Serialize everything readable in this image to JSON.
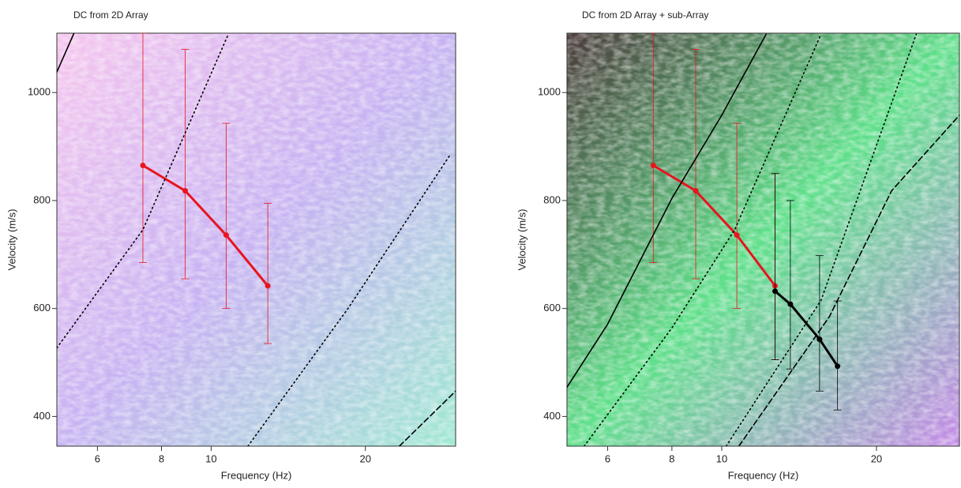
{
  "chart_data": [
    {
      "type": "line",
      "title": "DC from  2D Array",
      "x_label": "Frequency (Hz)",
      "y_label": "Velocity (m/s)",
      "log_x": true,
      "xlim": [
        5,
        30
      ],
      "ylim": [
        345,
        1110
      ],
      "xticks": [
        6,
        8,
        10,
        20
      ],
      "yticks": [
        400,
        600,
        800,
        1000
      ],
      "background": [
        "#f6c6ee",
        "#c7b3f2",
        "#9fe8d2"
      ],
      "series": [
        {
          "color": "#e8141e",
          "style": "solid",
          "markers": true,
          "x": [
            7.36,
            8.9,
            10.7,
            12.9
          ],
          "values": [
            865,
            818,
            736,
            642
          ],
          "lower": [
            685,
            655,
            600,
            535
          ],
          "upper": [
            1110,
            1080,
            943,
            795
          ]
        },
        {
          "color": "#000000",
          "style": "dotted",
          "x": [
            5,
            7.36,
            10.8
          ],
          "values": [
            527,
            746,
            1108
          ]
        },
        {
          "color": "#000000",
          "style": "dotted",
          "x": [
            11.8,
            18.5,
            29.3
          ],
          "values": [
            345,
            600,
            885
          ]
        },
        {
          "color": "#000000",
          "style": "dashed",
          "x": [
            23.3,
            30
          ],
          "values": [
            345,
            447
          ]
        },
        {
          "color": "#000000",
          "style": "solid",
          "x": [
            5,
            5.4
          ],
          "values": [
            1038,
            1110
          ]
        }
      ]
    },
    {
      "type": "line",
      "title": "DC from  2D Array + sub-Array",
      "x_label": "Frequency (Hz)",
      "y_label": "Velocity (m/s)",
      "log_x": true,
      "xlim": [
        5,
        29
      ],
      "ylim": [
        345,
        1110
      ],
      "xticks": [
        6,
        8,
        10,
        20
      ],
      "yticks": [
        400,
        600,
        800,
        1000
      ],
      "background": [
        "#4a3a3a",
        "#5fe08a",
        "#c58ae8"
      ],
      "series": [
        {
          "color": "#e8141e",
          "style": "solid",
          "markers": true,
          "x": [
            7.36,
            8.9,
            10.7,
            12.7
          ],
          "values": [
            865,
            818,
            736,
            642
          ],
          "lower": [
            685,
            655,
            600,
            505
          ],
          "upper": [
            1110,
            1080,
            943,
            850
          ]
        },
        {
          "color": "#000000",
          "style": "solid",
          "markers": true,
          "x": [
            12.7,
            13.6,
            15.5,
            16.8
          ],
          "values": [
            632,
            608,
            543,
            493
          ],
          "lower": [
            505,
            488,
            447,
            412
          ],
          "upper": [
            850,
            800,
            698,
            614
          ]
        },
        {
          "color": "#000000",
          "style": "solid",
          "x": [
            5,
            6,
            8,
            10,
            12.2
          ],
          "values": [
            454,
            571,
            804,
            958,
            1108
          ]
        },
        {
          "color": "#000000",
          "style": "dotted",
          "x": [
            5.4,
            8,
            10.6,
            15.6
          ],
          "values": [
            345,
            564,
            746,
            1108
          ]
        },
        {
          "color": "#000000",
          "style": "dotted",
          "x": [
            10.2,
            15.6,
            23.9
          ],
          "values": [
            345,
            615,
            1108
          ]
        },
        {
          "color": "#000000",
          "style": "dashed",
          "x": [
            10.8,
            16.2,
            21.4,
            29
          ],
          "values": [
            345,
            585,
            818,
            958
          ]
        }
      ]
    }
  ]
}
